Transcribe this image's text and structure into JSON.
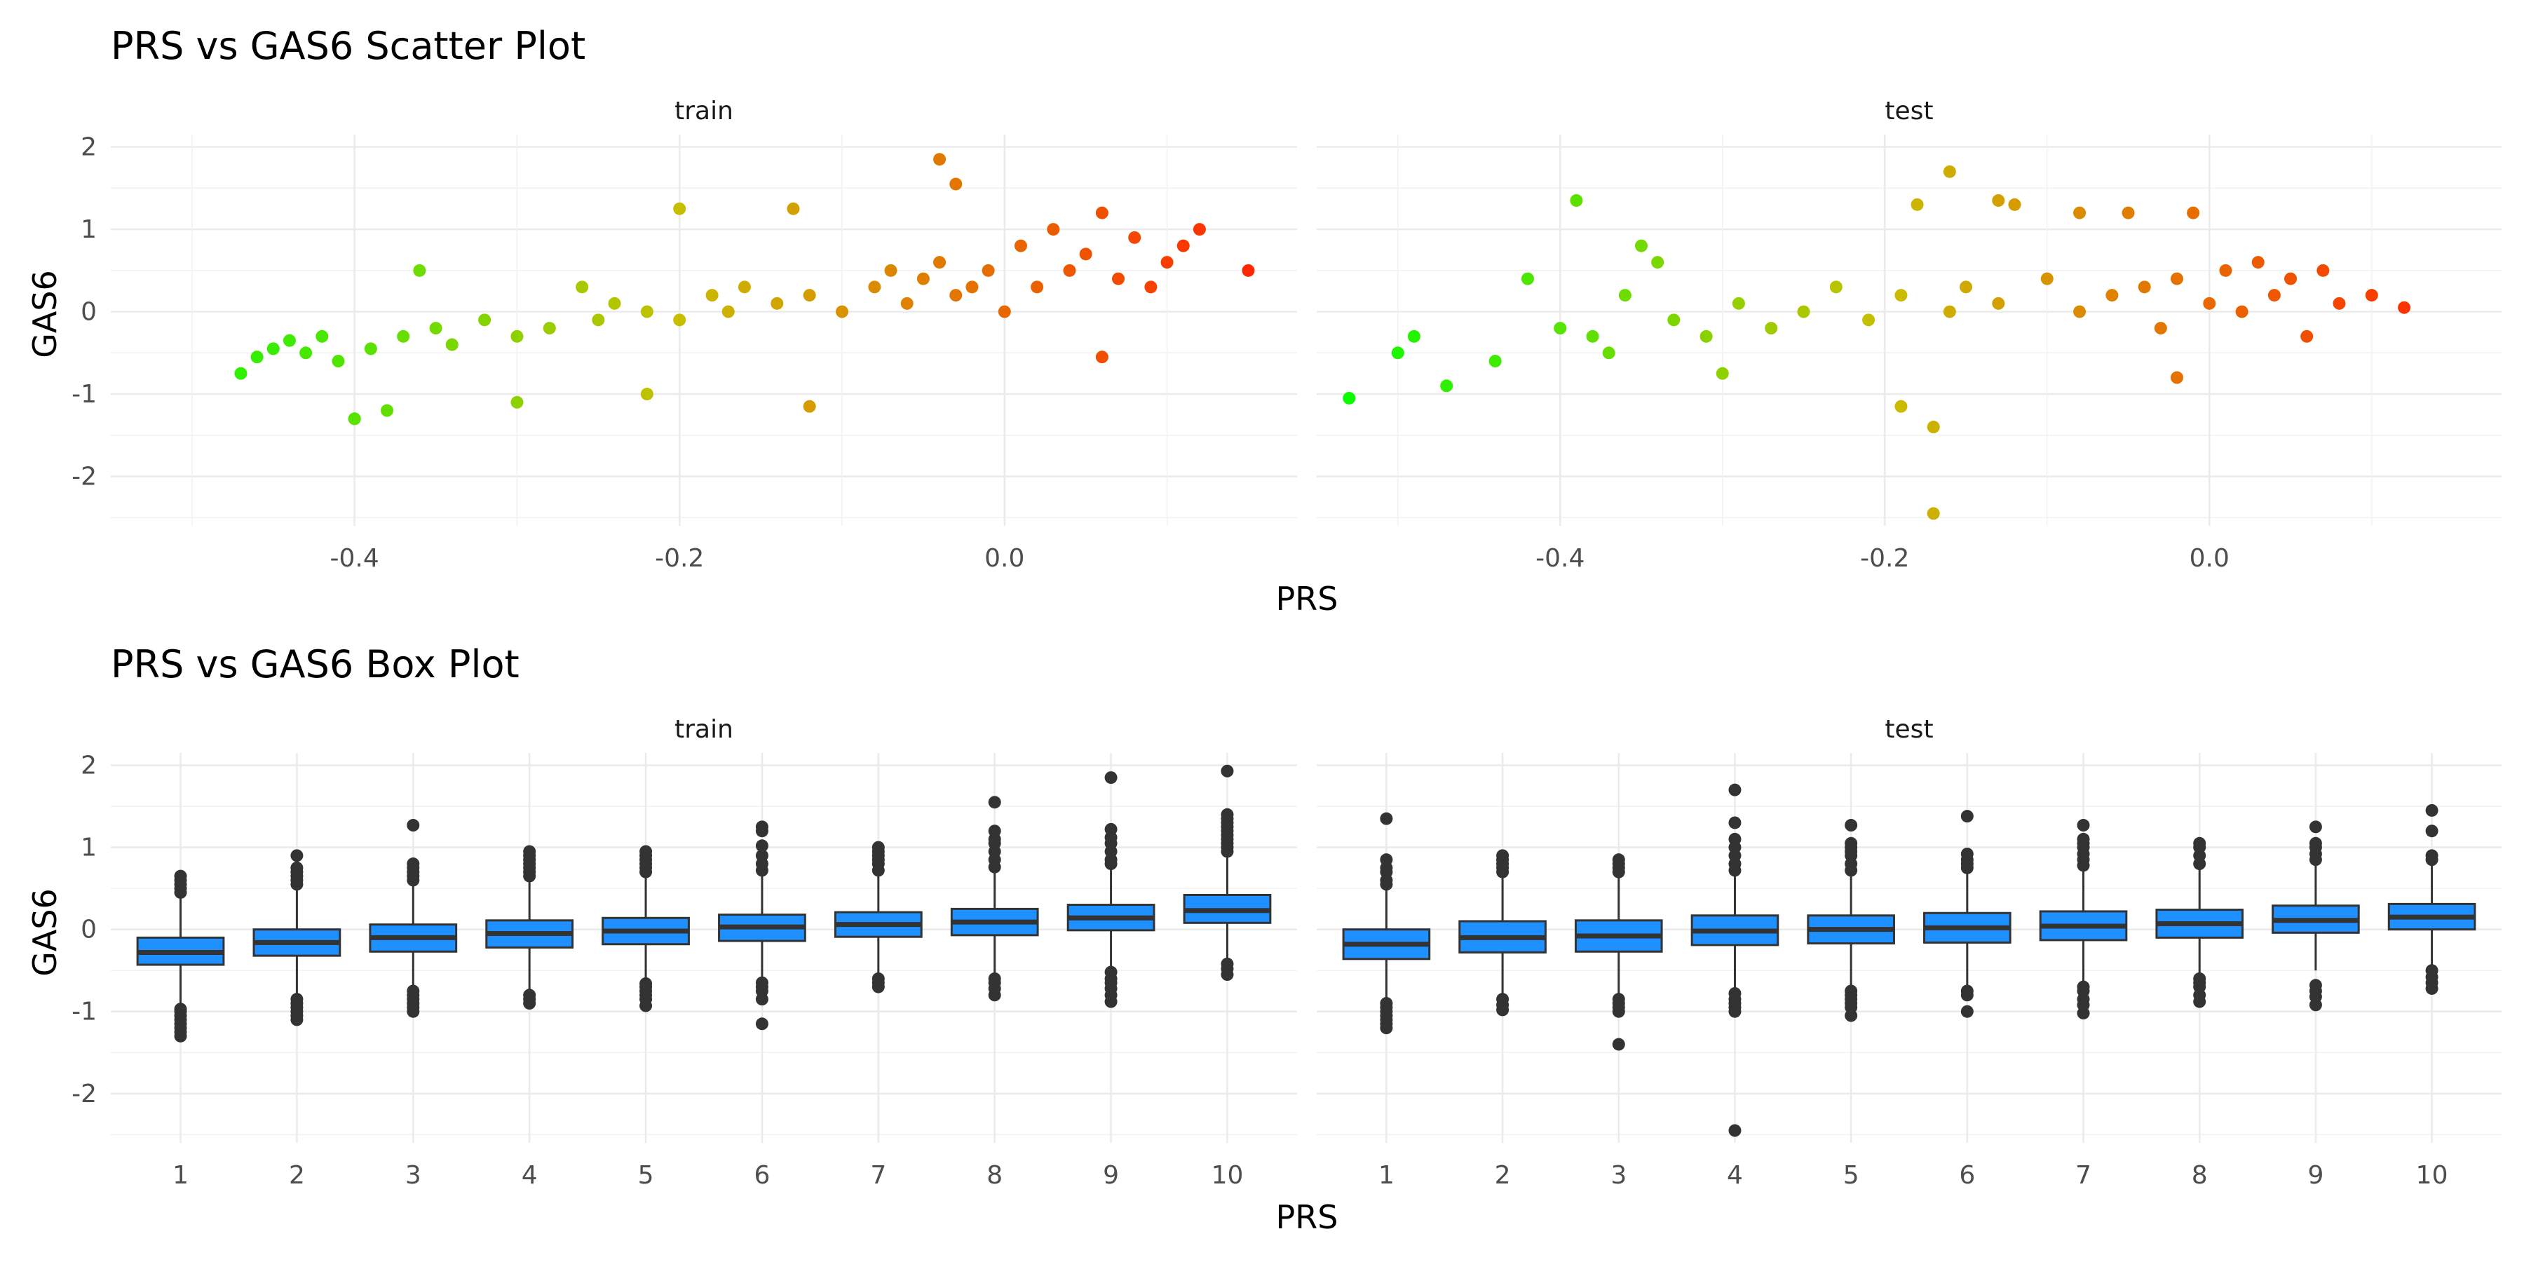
{
  "chart_data": [
    {
      "type": "scatter",
      "title": "PRS vs GAS6 Scatter Plot",
      "xlabel": "PRS",
      "ylabel": "GAS6",
      "facets": [
        "train",
        "test"
      ],
      "xlim": [
        -0.55,
        0.18
      ],
      "ylim": [
        -2.6,
        2.15
      ],
      "x_ticks": [
        -0.4,
        -0.2,
        0.0
      ],
      "x_tick_labels": [
        "-0.4",
        "-0.2",
        "0.0"
      ],
      "y_ticks": [
        -2,
        -1,
        0,
        1,
        2
      ],
      "y_tick_labels": [
        "-2",
        "-1",
        "0",
        "1",
        "2"
      ],
      "grid": true,
      "color_scale": {
        "low": "#00ff00",
        "high": "#ff0000",
        "mapped_to": "PRS"
      },
      "series": [
        {
          "facet": "train",
          "x": [
            -0.47,
            -0.46,
            -0.45,
            -0.44,
            -0.43,
            -0.42,
            -0.41,
            -0.4,
            -0.39,
            -0.38,
            -0.37,
            -0.36,
            -0.35,
            -0.34,
            -0.32,
            -0.3,
            -0.28,
            -0.26,
            -0.25,
            -0.24,
            -0.22,
            -0.2,
            -0.18,
            -0.17,
            -0.16,
            -0.14,
            -0.13,
            -0.12,
            -0.1,
            -0.08,
            -0.07,
            -0.06,
            -0.05,
            -0.04,
            -0.03,
            -0.02,
            -0.01,
            0.0,
            0.01,
            0.02,
            0.03,
            0.04,
            0.05,
            0.06,
            0.07,
            0.08,
            0.09,
            0.1,
            0.11,
            0.12,
            0.15,
            -0.4,
            -0.3,
            -0.22,
            -0.2,
            -0.12,
            -0.04,
            -0.03,
            0.06
          ],
          "y": [
            -0.75,
            -0.55,
            -0.45,
            -0.35,
            -0.5,
            -0.3,
            -0.6,
            -1.3,
            -0.45,
            -1.2,
            -0.3,
            0.5,
            -0.2,
            -0.4,
            -0.1,
            -0.3,
            -0.2,
            0.3,
            -0.1,
            0.1,
            0.0,
            -0.1,
            0.2,
            0.0,
            0.3,
            0.1,
            1.25,
            0.2,
            0.0,
            0.3,
            0.5,
            0.1,
            0.4,
            0.6,
            0.2,
            0.3,
            0.5,
            0.0,
            0.8,
            0.3,
            1.0,
            0.5,
            0.7,
            1.2,
            0.4,
            0.9,
            0.3,
            0.6,
            0.8,
            1.0,
            0.5,
            -1.3,
            -1.1,
            -1.0,
            1.25,
            -1.15,
            1.85,
            1.55,
            -0.55
          ]
        },
        {
          "facet": "test",
          "x": [
            -0.53,
            -0.5,
            -0.49,
            -0.47,
            -0.44,
            -0.42,
            -0.4,
            -0.39,
            -0.38,
            -0.37,
            -0.36,
            -0.35,
            -0.33,
            -0.31,
            -0.29,
            -0.27,
            -0.25,
            -0.23,
            -0.21,
            -0.19,
            -0.18,
            -0.17,
            -0.16,
            -0.15,
            -0.13,
            -0.12,
            -0.1,
            -0.08,
            -0.06,
            -0.05,
            -0.04,
            -0.03,
            -0.02,
            -0.01,
            0.0,
            0.01,
            0.02,
            0.03,
            0.04,
            0.05,
            0.06,
            0.07,
            0.08,
            0.1,
            0.12,
            -0.34,
            -0.3,
            -0.19,
            -0.17,
            -0.16,
            -0.13,
            -0.08,
            -0.02
          ],
          "y": [
            -1.05,
            -0.5,
            -0.3,
            -0.9,
            -0.6,
            0.4,
            -0.2,
            1.35,
            -0.3,
            -0.5,
            0.2,
            0.8,
            -0.1,
            -0.3,
            0.1,
            -0.2,
            0.0,
            0.3,
            -0.1,
            0.2,
            1.3,
            -1.4,
            0.0,
            0.3,
            0.1,
            1.3,
            0.4,
            0.0,
            0.2,
            1.2,
            0.3,
            -0.2,
            0.4,
            1.2,
            0.1,
            0.5,
            0.0,
            0.6,
            0.2,
            0.4,
            -0.3,
            0.5,
            0.1,
            0.2,
            0.05,
            0.6,
            -0.75,
            -1.15,
            -2.45,
            1.7,
            1.35,
            1.2,
            -0.8
          ]
        }
      ]
    },
    {
      "type": "box",
      "title": "PRS vs GAS6 Box Plot",
      "xlabel": "PRS",
      "ylabel": "GAS6",
      "facets": [
        "train",
        "test"
      ],
      "categories": [
        "1",
        "2",
        "3",
        "4",
        "5",
        "6",
        "7",
        "8",
        "9",
        "10"
      ],
      "ylim": [
        -2.6,
        2.15
      ],
      "y_ticks": [
        -2,
        -1,
        0,
        1,
        2
      ],
      "y_tick_labels": [
        "-2",
        "-1",
        "0",
        "1",
        "2"
      ],
      "grid": true,
      "box_color": "#1e90ff",
      "series": [
        {
          "facet": "train",
          "boxes": [
            {
              "q1": -0.43,
              "median": -0.28,
              "q3": -0.1,
              "lower": -0.93,
              "upper": 0.42,
              "outliers": [
                -1.3,
                -1.25,
                -1.2,
                -1.15,
                -1.1,
                -1.05,
                -1.0,
                -0.97,
                0.45,
                0.5,
                0.55,
                0.6,
                0.65
              ]
            },
            {
              "q1": -0.32,
              "median": -0.16,
              "q3": 0.0,
              "lower": -0.82,
              "upper": 0.5,
              "outliers": [
                -1.1,
                -1.05,
                -1.0,
                -0.95,
                -0.9,
                -0.85,
                0.55,
                0.6,
                0.65,
                0.7,
                0.75,
                0.9
              ]
            },
            {
              "q1": -0.27,
              "median": -0.1,
              "q3": 0.06,
              "lower": -0.72,
              "upper": 0.58,
              "outliers": [
                -1.0,
                -0.95,
                -0.9,
                -0.85,
                -0.8,
                -0.75,
                0.6,
                0.65,
                0.7,
                0.75,
                0.8,
                1.27
              ]
            },
            {
              "q1": -0.22,
              "median": -0.05,
              "q3": 0.11,
              "lower": -0.75,
              "upper": 0.62,
              "outliers": [
                -0.9,
                -0.85,
                -0.8,
                0.65,
                0.7,
                0.75,
                0.8,
                0.85,
                0.9,
                0.95
              ]
            },
            {
              "q1": -0.18,
              "median": -0.02,
              "q3": 0.14,
              "lower": -0.64,
              "upper": 0.66,
              "outliers": [
                -0.93,
                -0.85,
                -0.8,
                -0.75,
                -0.7,
                -0.66,
                0.7,
                0.75,
                0.8,
                0.85,
                0.9,
                0.95
              ]
            },
            {
              "q1": -0.14,
              "median": 0.03,
              "q3": 0.18,
              "lower": -0.6,
              "upper": 0.68,
              "outliers": [
                -1.15,
                -0.85,
                -0.75,
                -0.7,
                -0.65,
                0.72,
                0.8,
                0.9,
                1.02,
                1.2,
                1.25
              ]
            },
            {
              "q1": -0.09,
              "median": 0.06,
              "q3": 0.21,
              "lower": -0.55,
              "upper": 0.68,
              "outliers": [
                -0.7,
                -0.65,
                -0.6,
                0.72,
                0.8,
                0.85,
                0.9,
                0.95,
                1.0
              ]
            },
            {
              "q1": -0.07,
              "median": 0.09,
              "q3": 0.25,
              "lower": -0.55,
              "upper": 0.72,
              "outliers": [
                -0.8,
                -0.72,
                -0.65,
                -0.6,
                0.76,
                0.85,
                0.95,
                1.05,
                1.1,
                1.2,
                1.55
              ]
            },
            {
              "q1": -0.01,
              "median": 0.14,
              "q3": 0.3,
              "lower": -0.45,
              "upper": 0.77,
              "outliers": [
                -0.88,
                -0.8,
                -0.72,
                -0.65,
                -0.6,
                -0.52,
                0.8,
                0.85,
                0.95,
                1.05,
                1.12,
                1.22,
                1.85
              ]
            },
            {
              "q1": 0.08,
              "median": 0.23,
              "q3": 0.42,
              "lower": -0.4,
              "upper": 0.9,
              "outliers": [
                -0.55,
                -0.48,
                -0.42,
                0.95,
                1.0,
                1.05,
                1.1,
                1.15,
                1.2,
                1.25,
                1.3,
                1.35,
                1.4,
                1.93
              ]
            }
          ]
        },
        {
          "facet": "test",
          "boxes": [
            {
              "q1": -0.36,
              "median": -0.18,
              "q3": 0.0,
              "lower": -0.85,
              "upper": 0.53,
              "outliers": [
                -1.2,
                -1.15,
                -1.1,
                -1.05,
                -1.0,
                -0.95,
                -0.9,
                0.55,
                0.6,
                0.7,
                0.75,
                0.85,
                1.35
              ]
            },
            {
              "q1": -0.28,
              "median": -0.1,
              "q3": 0.1,
              "lower": -0.8,
              "upper": 0.65,
              "outliers": [
                -0.98,
                -0.92,
                -0.85,
                0.7,
                0.75,
                0.8,
                0.85,
                0.9
              ]
            },
            {
              "q1": -0.27,
              "median": -0.08,
              "q3": 0.11,
              "lower": -0.78,
              "upper": 0.66,
              "outliers": [
                -1.4,
                -1.0,
                -0.95,
                -0.9,
                -0.85,
                0.7,
                0.75,
                0.8,
                0.85
              ]
            },
            {
              "q1": -0.19,
              "median": -0.02,
              "q3": 0.17,
              "lower": -0.72,
              "upper": 0.7,
              "outliers": [
                -2.45,
                -1.0,
                -0.95,
                -0.9,
                -0.85,
                -0.78,
                0.72,
                0.8,
                0.9,
                1.0,
                1.1,
                1.3,
                1.7
              ]
            },
            {
              "q1": -0.17,
              "median": 0.0,
              "q3": 0.17,
              "lower": -0.68,
              "upper": 0.68,
              "outliers": [
                -1.05,
                -0.95,
                -0.9,
                -0.85,
                -0.8,
                -0.75,
                0.72,
                0.8,
                0.9,
                0.95,
                1.0,
                1.05,
                1.27
              ]
            },
            {
              "q1": -0.16,
              "median": 0.02,
              "q3": 0.2,
              "lower": -0.7,
              "upper": 0.7,
              "outliers": [
                -1.0,
                -0.8,
                -0.75,
                0.75,
                0.8,
                0.85,
                0.92,
                1.38
              ]
            },
            {
              "q1": -0.13,
              "median": 0.04,
              "q3": 0.22,
              "lower": -0.65,
              "upper": 0.72,
              "outliers": [
                -1.02,
                -0.92,
                -0.85,
                -0.75,
                -0.7,
                0.78,
                0.85,
                0.92,
                1.0,
                1.05,
                1.1,
                1.27
              ]
            },
            {
              "q1": -0.1,
              "median": 0.07,
              "q3": 0.24,
              "lower": -0.58,
              "upper": 0.75,
              "outliers": [
                -0.88,
                -0.8,
                -0.7,
                -0.65,
                -0.6,
                0.8,
                0.9,
                1.0,
                1.05
              ]
            },
            {
              "q1": -0.04,
              "median": 0.11,
              "q3": 0.29,
              "lower": -0.5,
              "upper": 0.8,
              "outliers": [
                -0.92,
                -0.82,
                -0.75,
                -0.68,
                0.85,
                0.92,
                1.0,
                1.05,
                1.25
              ]
            },
            {
              "q1": 0.0,
              "median": 0.15,
              "q3": 0.31,
              "lower": -0.45,
              "upper": 0.8,
              "outliers": [
                -0.72,
                -0.65,
                -0.58,
                -0.5,
                0.85,
                0.9,
                1.2,
                1.45
              ]
            }
          ]
        }
      ]
    }
  ]
}
